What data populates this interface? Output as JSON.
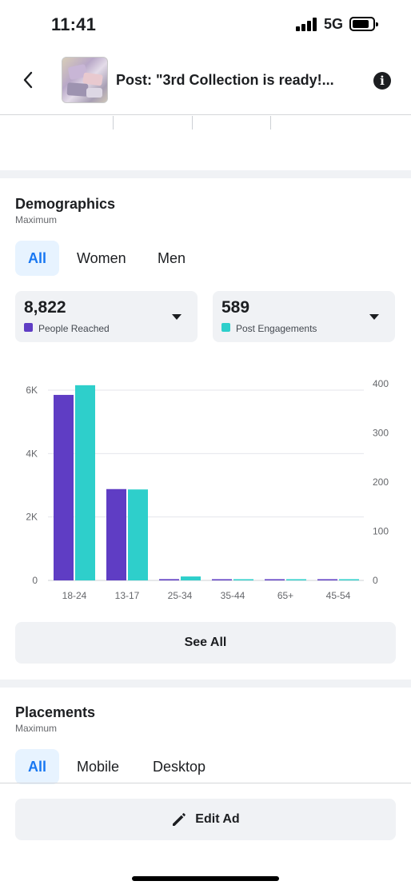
{
  "status_bar": {
    "time": "11:41",
    "network": "5G"
  },
  "header": {
    "title": "Post: \"3rd Collection is ready!..."
  },
  "demographics": {
    "title": "Demographics",
    "subtitle": "Maximum",
    "filters": [
      "All",
      "Women",
      "Men"
    ],
    "active_filter": "All",
    "metrics": [
      {
        "value": "8,822",
        "label": "People Reached",
        "color": "#5f3dc4"
      },
      {
        "value": "589",
        "label": "Post Engagements",
        "color": "#2ecfcb"
      }
    ],
    "see_all_label": "See All"
  },
  "chart_data": {
    "type": "bar",
    "categories": [
      "18-24",
      "13-17",
      "25-34",
      "35-44",
      "65+",
      "45-54"
    ],
    "series": [
      {
        "name": "People Reached",
        "axis": "left",
        "color": "#5f3dc4",
        "values": [
          5850,
          2880,
          40,
          12,
          10,
          10
        ]
      },
      {
        "name": "Post Engagements",
        "axis": "right",
        "color": "#2ecfcb",
        "values": [
          397,
          185,
          8,
          2,
          2,
          2
        ]
      }
    ],
    "left_axis": {
      "ticks": [
        "0",
        "2K",
        "4K",
        "6K"
      ],
      "values": [
        0,
        2000,
        4000,
        6000
      ],
      "ylim": [
        0,
        6000
      ]
    },
    "right_axis": {
      "ticks": [
        "0",
        "100",
        "200",
        "300",
        "400"
      ],
      "values": [
        0,
        100,
        200,
        300,
        400
      ],
      "ylim": [
        0,
        400
      ]
    },
    "grid": true
  },
  "placements": {
    "title": "Placements",
    "subtitle": "Maximum",
    "filters": [
      "All",
      "Mobile",
      "Desktop"
    ],
    "active_filter": "All"
  },
  "footer": {
    "edit_label": "Edit Ad"
  },
  "icons": {
    "back": "chevron-left-icon",
    "info": "info-icon",
    "edit": "pencil-icon"
  }
}
